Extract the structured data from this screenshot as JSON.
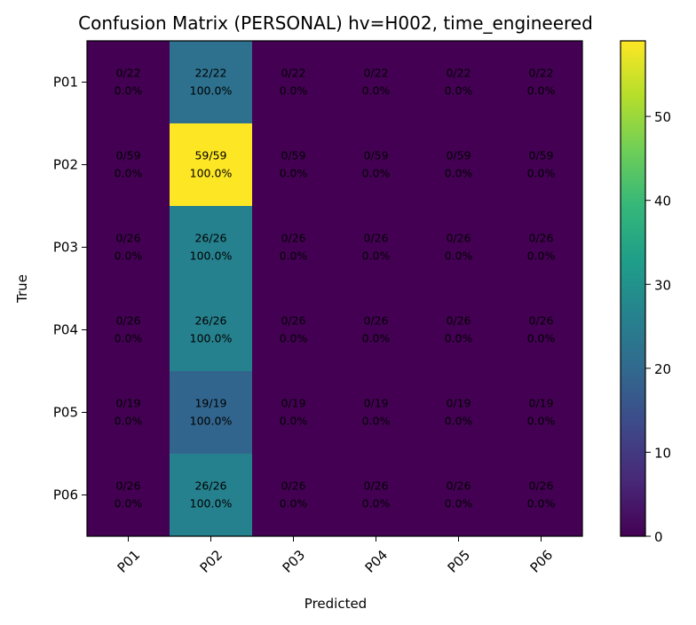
{
  "chart_data": {
    "type": "heatmap",
    "title": "Confusion Matrix (PERSONAL) hv=H002, time_engineered",
    "xlabel": "Predicted",
    "ylabel": "True",
    "x_categories": [
      "P01",
      "P02",
      "P03",
      "P04",
      "P05",
      "P06"
    ],
    "y_categories": [
      "P01",
      "P02",
      "P03",
      "P04",
      "P05",
      "P06"
    ],
    "matrix": [
      [
        0,
        22,
        0,
        0,
        0,
        0
      ],
      [
        0,
        59,
        0,
        0,
        0,
        0
      ],
      [
        0,
        26,
        0,
        0,
        0,
        0
      ],
      [
        0,
        26,
        0,
        0,
        0,
        0
      ],
      [
        0,
        19,
        0,
        0,
        0,
        0
      ],
      [
        0,
        26,
        0,
        0,
        0,
        0
      ]
    ],
    "cell_labels": [
      [
        [
          "0/22",
          "0.0%"
        ],
        [
          "22/22",
          "100.0%"
        ],
        [
          "0/22",
          "0.0%"
        ],
        [
          "0/22",
          "0.0%"
        ],
        [
          "0/22",
          "0.0%"
        ],
        [
          "0/22",
          "0.0%"
        ]
      ],
      [
        [
          "0/59",
          "0.0%"
        ],
        [
          "59/59",
          "100.0%"
        ],
        [
          "0/59",
          "0.0%"
        ],
        [
          "0/59",
          "0.0%"
        ],
        [
          "0/59",
          "0.0%"
        ],
        [
          "0/59",
          "0.0%"
        ]
      ],
      [
        [
          "0/26",
          "0.0%"
        ],
        [
          "26/26",
          "100.0%"
        ],
        [
          "0/26",
          "0.0%"
        ],
        [
          "0/26",
          "0.0%"
        ],
        [
          "0/26",
          "0.0%"
        ],
        [
          "0/26",
          "0.0%"
        ]
      ],
      [
        [
          "0/26",
          "0.0%"
        ],
        [
          "26/26",
          "100.0%"
        ],
        [
          "0/26",
          "0.0%"
        ],
        [
          "0/26",
          "0.0%"
        ],
        [
          "0/26",
          "0.0%"
        ],
        [
          "0/26",
          "0.0%"
        ]
      ],
      [
        [
          "0/19",
          "0.0%"
        ],
        [
          "19/19",
          "100.0%"
        ],
        [
          "0/19",
          "0.0%"
        ],
        [
          "0/19",
          "0.0%"
        ],
        [
          "0/19",
          "0.0%"
        ],
        [
          "0/19",
          "0.0%"
        ]
      ],
      [
        [
          "0/26",
          "0.0%"
        ],
        [
          "26/26",
          "100.0%"
        ],
        [
          "0/26",
          "0.0%"
        ],
        [
          "0/26",
          "0.0%"
        ],
        [
          "0/26",
          "0.0%"
        ],
        [
          "0/26",
          "0.0%"
        ]
      ]
    ],
    "colormap": "viridis",
    "colorbar_range": [
      0,
      59
    ],
    "colorbar_ticks": [
      0,
      10,
      20,
      30,
      40,
      50
    ],
    "colors": {
      "viridis_low": "#440154",
      "viridis_high": "#fde725",
      "text": "#000000"
    }
  }
}
